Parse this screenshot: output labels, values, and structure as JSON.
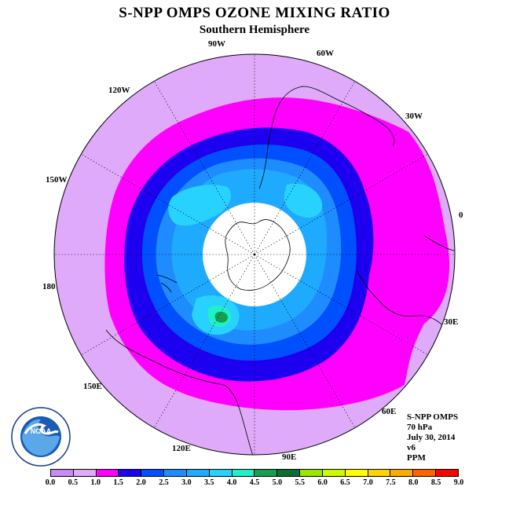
{
  "header": {
    "title": "S-NPP OMPS OZONE MIXING RATIO",
    "subtitle": "Southern Hemisphere"
  },
  "map": {
    "projection": "south-polar-stereographic",
    "longitude_labels": [
      "0",
      "30E",
      "60E",
      "90E",
      "120E",
      "150E",
      "180",
      "150W",
      "120W",
      "90W",
      "60W",
      "30W"
    ],
    "colors": {
      "ocean_outer": "#dfaaf9",
      "polar_night": "#ffffff",
      "coastline": "#000000",
      "gridline": "#000000"
    }
  },
  "info": {
    "instrument": "S-NPP OMPS",
    "pressure_level": "70 hPa",
    "date": "July 30, 2014",
    "version": "v6",
    "units": "PPM"
  },
  "logo": {
    "name": "noaa-logo",
    "text": "NOAA",
    "ring_text": "NATIONAL OCEANIC AND ATMOSPHERIC ADMINISTRATION"
  },
  "colorbar": {
    "ticks": [
      "0.0",
      "0.5",
      "1.0",
      "1.5",
      "2.0",
      "2.5",
      "3.0",
      "3.5",
      "4.0",
      "4.5",
      "5.0",
      "5.5",
      "6.0",
      "6.5",
      "7.0",
      "7.5",
      "8.0",
      "8.5",
      "9.0"
    ],
    "colors": [
      "#c98af5",
      "#dfaaf9",
      "#ff00ff",
      "#1e00f0",
      "#0050ff",
      "#1e8cff",
      "#1eaaff",
      "#28d2ff",
      "#20f0c8",
      "#14a050",
      "#0a6e32",
      "#9be600",
      "#cdfa00",
      "#ffff00",
      "#ffd200",
      "#ffaa00",
      "#ff6400",
      "#ff0000",
      "#8c5a3c"
    ]
  }
}
